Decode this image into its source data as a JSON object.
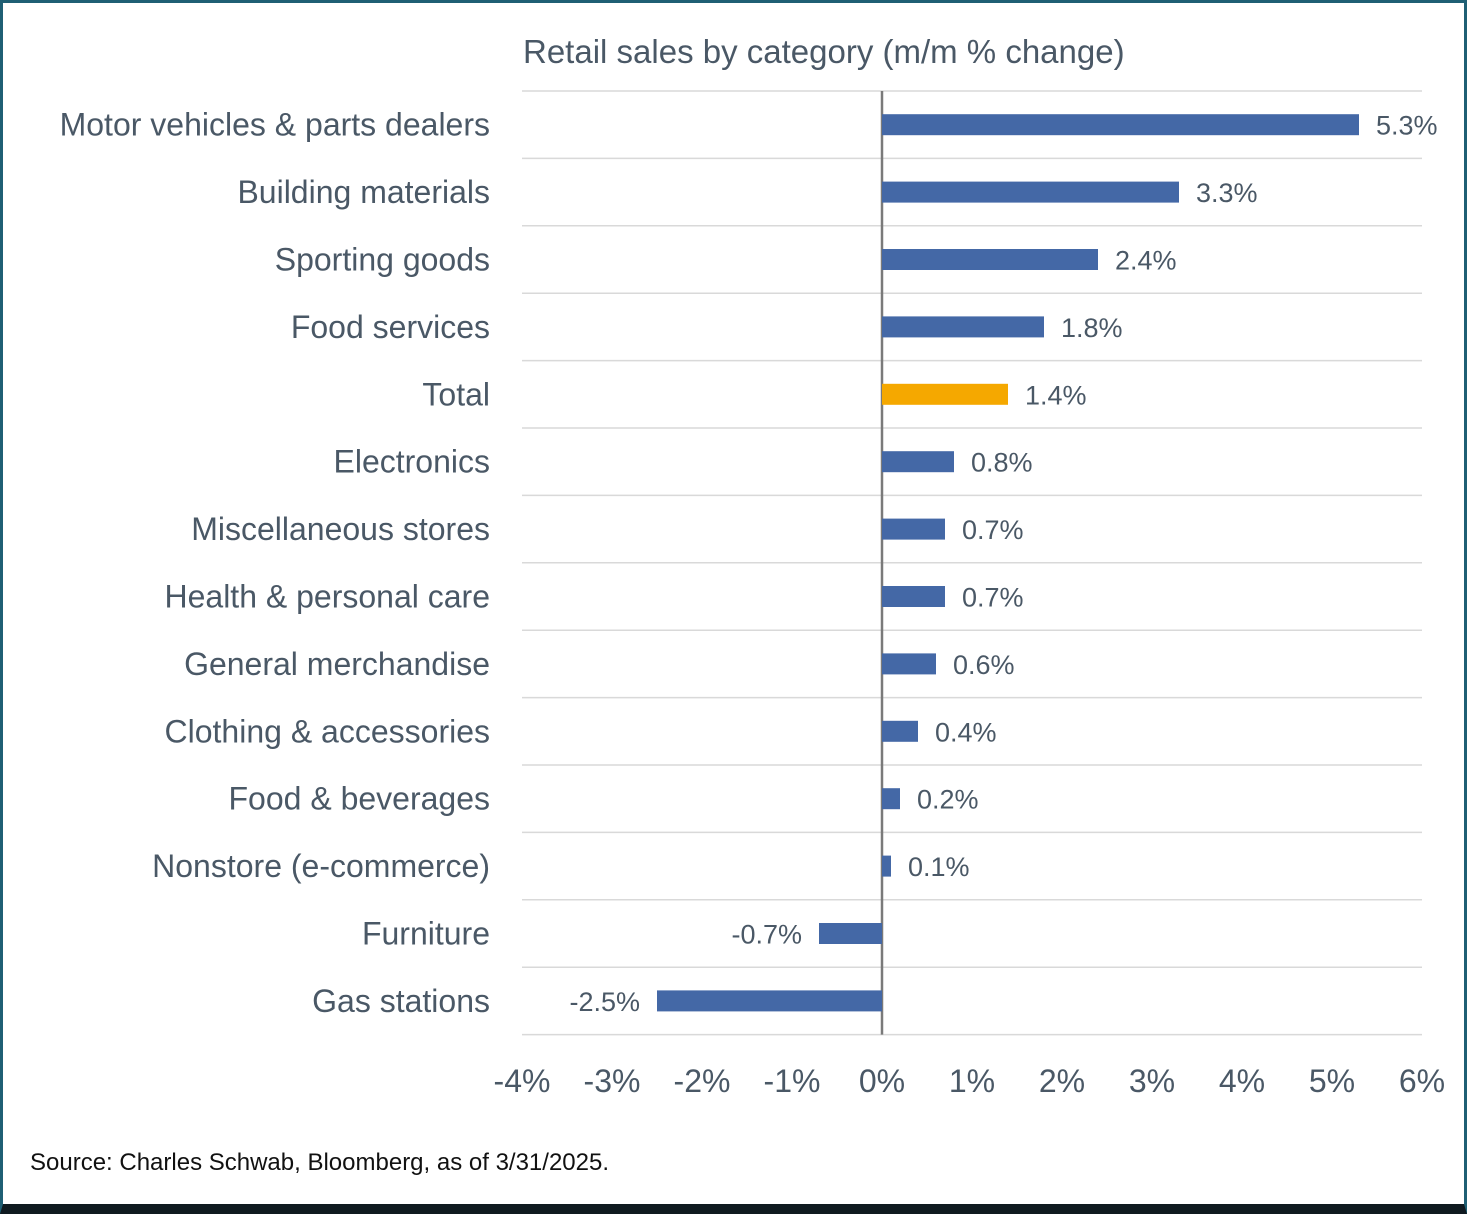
{
  "chart_data": {
    "type": "bar",
    "orientation": "horizontal",
    "title": "Retail sales by category (m/m % change)",
    "categories": [
      "Motor vehicles & parts dealers",
      "Building materials",
      "Sporting goods",
      "Food services",
      "Total",
      "Electronics",
      "Miscellaneous stores",
      "Health & personal care",
      "General merchandise",
      "Clothing & accessories",
      "Food & beverages",
      "Nonstore (e-commerce)",
      "Furniture",
      "Gas stations"
    ],
    "values": [
      5.3,
      3.3,
      2.4,
      1.8,
      1.4,
      0.8,
      0.7,
      0.7,
      0.6,
      0.4,
      0.2,
      0.1,
      -0.7,
      -2.5
    ],
    "value_labels": [
      "5.3%",
      "3.3%",
      "2.4%",
      "1.8%",
      "1.4%",
      "0.8%",
      "0.7%",
      "0.7%",
      "0.6%",
      "0.4%",
      "0.2%",
      "0.1%",
      "-0.7%",
      "-2.5%"
    ],
    "xlim": [
      -4,
      6
    ],
    "xticks": [
      -4,
      -3,
      -2,
      -1,
      0,
      1,
      2,
      3,
      4,
      5,
      6
    ],
    "xtick_labels": [
      "-4%",
      "-3%",
      "-2%",
      "-1%",
      "0%",
      "1%",
      "2%",
      "3%",
      "4%",
      "5%",
      "6%"
    ],
    "grid": "horizontal separators",
    "bar_color": "#4468a6",
    "highlight_category": "Total",
    "highlight_color": "#f5a800",
    "text_color": "#4a5866",
    "grid_color": "#d9d9d9",
    "zero_line_color": "#7a7a7a"
  },
  "source": "Source: Charles Schwab, Bloomberg, as of 3/31/2025."
}
